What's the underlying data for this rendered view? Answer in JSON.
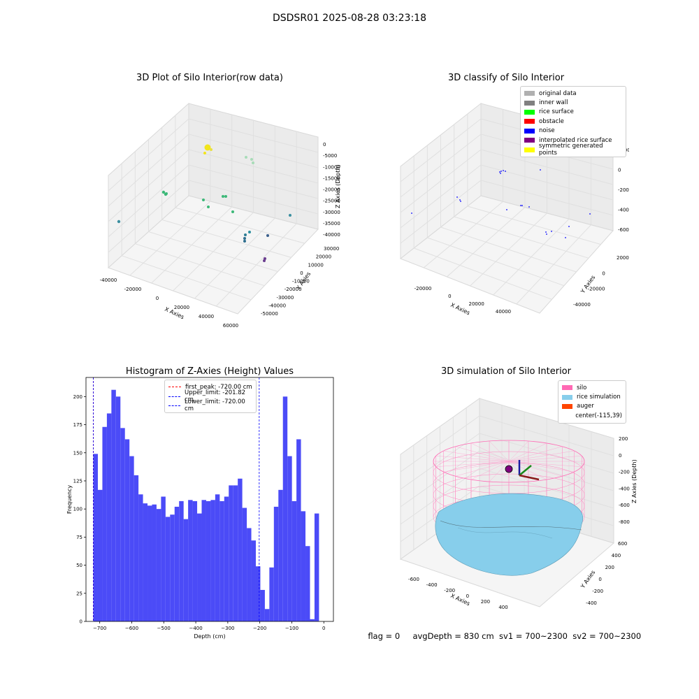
{
  "page": {
    "suptitle": "DSDSR01 2025-08-28 03:23:18",
    "footer": {
      "flag": "flag = 0",
      "avg_depth": "avgDepth = 830 cm",
      "sv1": "sv1 = 700~2300",
      "sv2": "sv2 = 700~2300"
    }
  },
  "chart_data": [
    {
      "type": "scatter",
      "title": "3D Plot of Silo Interior(row data)",
      "xlabel": "X Axies",
      "ylabel": "Y Axies",
      "zlabel": "Z Axies (Depth)",
      "x_ticks": [
        "-40000",
        "-20000",
        "0",
        "20000",
        "40000",
        "60000"
      ],
      "y_ticks": [
        "-50000",
        "-40000",
        "-30000",
        "-20000",
        "-10000",
        "0",
        "10000",
        "20000",
        "30000"
      ],
      "z_ticks": [
        "0",
        "-5000",
        "-10000",
        "-15000",
        "-20000",
        "-25000",
        "-30000",
        "-35000",
        "-40000"
      ],
      "points_approx": [
        {
          "x": -35000,
          "y": 5000,
          "z": -30000,
          "color": "#3b8fa0"
        },
        {
          "x": -5000,
          "y": 20000,
          "z": -18000,
          "color": "#3cb878"
        },
        {
          "x": 5000,
          "y": 25000,
          "z": -3000,
          "color": "#f2e51c"
        },
        {
          "x": 25000,
          "y": 22000,
          "z": -5000,
          "color": "#a8dcb8"
        },
        {
          "x": 15000,
          "y": 5000,
          "z": -22000,
          "color": "#3cb878"
        },
        {
          "x": 40000,
          "y": 10000,
          "z": -30000,
          "color": "#3b8fa0"
        },
        {
          "x": 30000,
          "y": -20000,
          "z": -35000,
          "color": "#2e6e8e"
        },
        {
          "x": 35000,
          "y": -35000,
          "z": -40000,
          "color": "#6a3d8f"
        }
      ]
    },
    {
      "type": "scatter",
      "title": "3D classify of Silo Interior",
      "xlabel": "X Axies",
      "ylabel": "Y Axies",
      "zlabel": "Z Axies (Depth)",
      "x_ticks": [
        "-20000",
        "0",
        "20000",
        "40000"
      ],
      "y_ticks": [
        "-40000",
        "-20000",
        "0",
        "20000"
      ],
      "z_ticks": [
        "0000",
        "0",
        "-20000",
        "-40000",
        "-60000"
      ],
      "legend": [
        {
          "label": "original data",
          "color": "#b0b0b0"
        },
        {
          "label": "inner wall",
          "color": "#808080"
        },
        {
          "label": "rice surface",
          "color": "#00ff00"
        },
        {
          "label": "obstacle",
          "color": "#ff0000"
        },
        {
          "label": "noise",
          "color": "#0000ff"
        },
        {
          "label": "interpolated rice surface",
          "color": "#800080"
        },
        {
          "label": "symmetric generated points",
          "color": "#ffff00"
        }
      ]
    },
    {
      "type": "bar",
      "title": "Histogram of Z-Axies (Height) Values",
      "xlabel": "Depth (cm)",
      "ylabel": "Frequency",
      "xlim": [
        -743,
        30
      ],
      "ylim": [
        0,
        217
      ],
      "x_ticks": [
        -700,
        -600,
        -500,
        -400,
        -300,
        -200,
        -100,
        0
      ],
      "y_ticks": [
        0,
        25,
        50,
        75,
        100,
        125,
        150,
        175,
        200
      ],
      "bin_width": 14.1,
      "bin_start": -720,
      "values": [
        149,
        117,
        173,
        185,
        206,
        200,
        172,
        162,
        147,
        130,
        113,
        105,
        103,
        104,
        100,
        111,
        93,
        95,
        102,
        107,
        91,
        108,
        107,
        96,
        108,
        107,
        108,
        113,
        107,
        111,
        121,
        121,
        127,
        101,
        83,
        72,
        49,
        28,
        11,
        48,
        102,
        117,
        200,
        147,
        107,
        162,
        98,
        67,
        2,
        96
      ],
      "color": "#4b4bf7",
      "legend": [
        {
          "label": "first_peak: -720.00 cm",
          "value": -720.0,
          "color": "#ff0000"
        },
        {
          "label": "Upper_limit: -201.82 cm",
          "value": -201.82,
          "color": "#0000ff"
        },
        {
          "label": "Lower_limit: -720.00 cm",
          "value": -720.0,
          "color": "#0000ff"
        }
      ]
    },
    {
      "type": "area",
      "title": "3D simulation of Silo Interior",
      "xlabel": "X Axies",
      "ylabel": "Y Axies",
      "zlabel": "Z Axies (Depth)",
      "x_ticks": [
        "-600",
        "-400",
        "-200",
        "0",
        "200",
        "400"
      ],
      "y_ticks": [
        "-400",
        "-200",
        "0",
        "200",
        "400",
        "600"
      ],
      "z_ticks": [
        "200",
        "0",
        "-200",
        "-400",
        "-600",
        "-800"
      ],
      "legend": [
        {
          "label": "silo",
          "color": "#ff69b4"
        },
        {
          "label": "rice simulation",
          "color": "#87ceeb"
        },
        {
          "label": "auger",
          "color": "#ff4500"
        },
        {
          "label": "center(-115,39)",
          "color": ""
        }
      ]
    }
  ]
}
